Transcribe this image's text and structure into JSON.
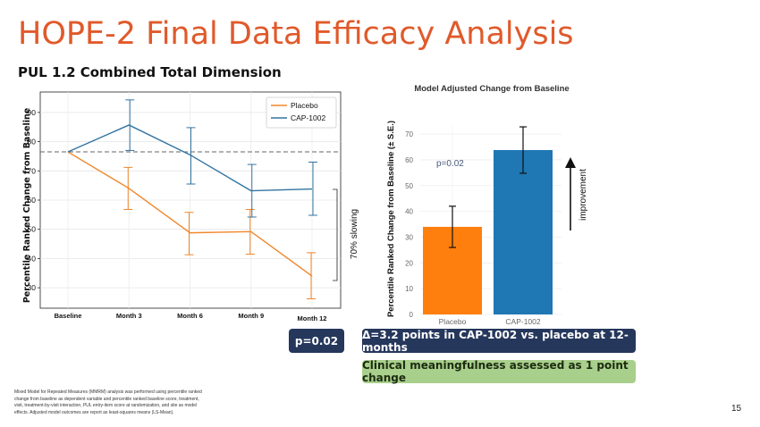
{
  "slide": {
    "title": "HOPE-2 Final Data Efficacy Analysis",
    "subtitle": "PUL 1.2 Combined Total Dimension",
    "p_badge": "p=0.02",
    "delta_badge": "Δ=3.2 points in CAP-1002 vs. placebo at 12-months",
    "clinical_badge": "Clinical meaningfulness assessed as 1 point change",
    "footnote": "Mixed Model for Repeated Measures (MMRM) analysis was performed using percentile ranked change from baseline as dependent variable and percentile ranked baseline score, treatment, visit, treatment-by-visit interaction, PUL entry-item score at randomization, and site as model effects. Adjusted model outcomes are report as least-squares means (LS-Mean).",
    "page_number": "15",
    "slowing_label": "70% slowing",
    "improvement_label": "improvement"
  },
  "chart_data": [
    {
      "type": "line",
      "title": "",
      "ylabel": "Percentile Ranked Change from Baseline",
      "xlabel": "",
      "categories": [
        "Baseline",
        "Month 3",
        "Month 6",
        "Month 9",
        "Month 12"
      ],
      "yticks": [
        30,
        40,
        50,
        60,
        70,
        80,
        90
      ],
      "ylim": [
        23,
        97
      ],
      "reference_line": 76.5,
      "grid": true,
      "legend": "top-right",
      "series": [
        {
          "name": "Placebo",
          "color": "#f0862a",
          "values": [
            76.5,
            64,
            48.8,
            49.2,
            34
          ],
          "err_low": [
            null,
            56.8,
            41.3,
            41.5,
            26.2
          ],
          "err_high": [
            null,
            71.2,
            55.8,
            56.8,
            42
          ]
        },
        {
          "name": "CAP-1002",
          "color": "#3274a1",
          "values": [
            76.5,
            85.7,
            75.5,
            63.2,
            63.8
          ],
          "err_low": [
            null,
            77,
            65.5,
            54.2,
            54.8
          ],
          "err_high": [
            null,
            94.3,
            84.8,
            72.2,
            73
          ]
        }
      ]
    },
    {
      "type": "bar",
      "title": "Model Adjusted Change from Baseline",
      "ylabel": "Percentile Ranked Change from Baseline (± S.E.)",
      "xlabel": "",
      "categories": [
        "Placebo",
        "CAP-1002"
      ],
      "values": [
        34,
        63.8
      ],
      "err_low": [
        26,
        54.8
      ],
      "err_high": [
        42,
        72.8
      ],
      "colors": [
        "#ff7f0e",
        "#1f77b4"
      ],
      "yticks": [
        0,
        10,
        20,
        30,
        40,
        50,
        60,
        70
      ],
      "ylim": [
        0,
        73.5
      ],
      "annotation": "p=0.02",
      "grid": true
    }
  ]
}
